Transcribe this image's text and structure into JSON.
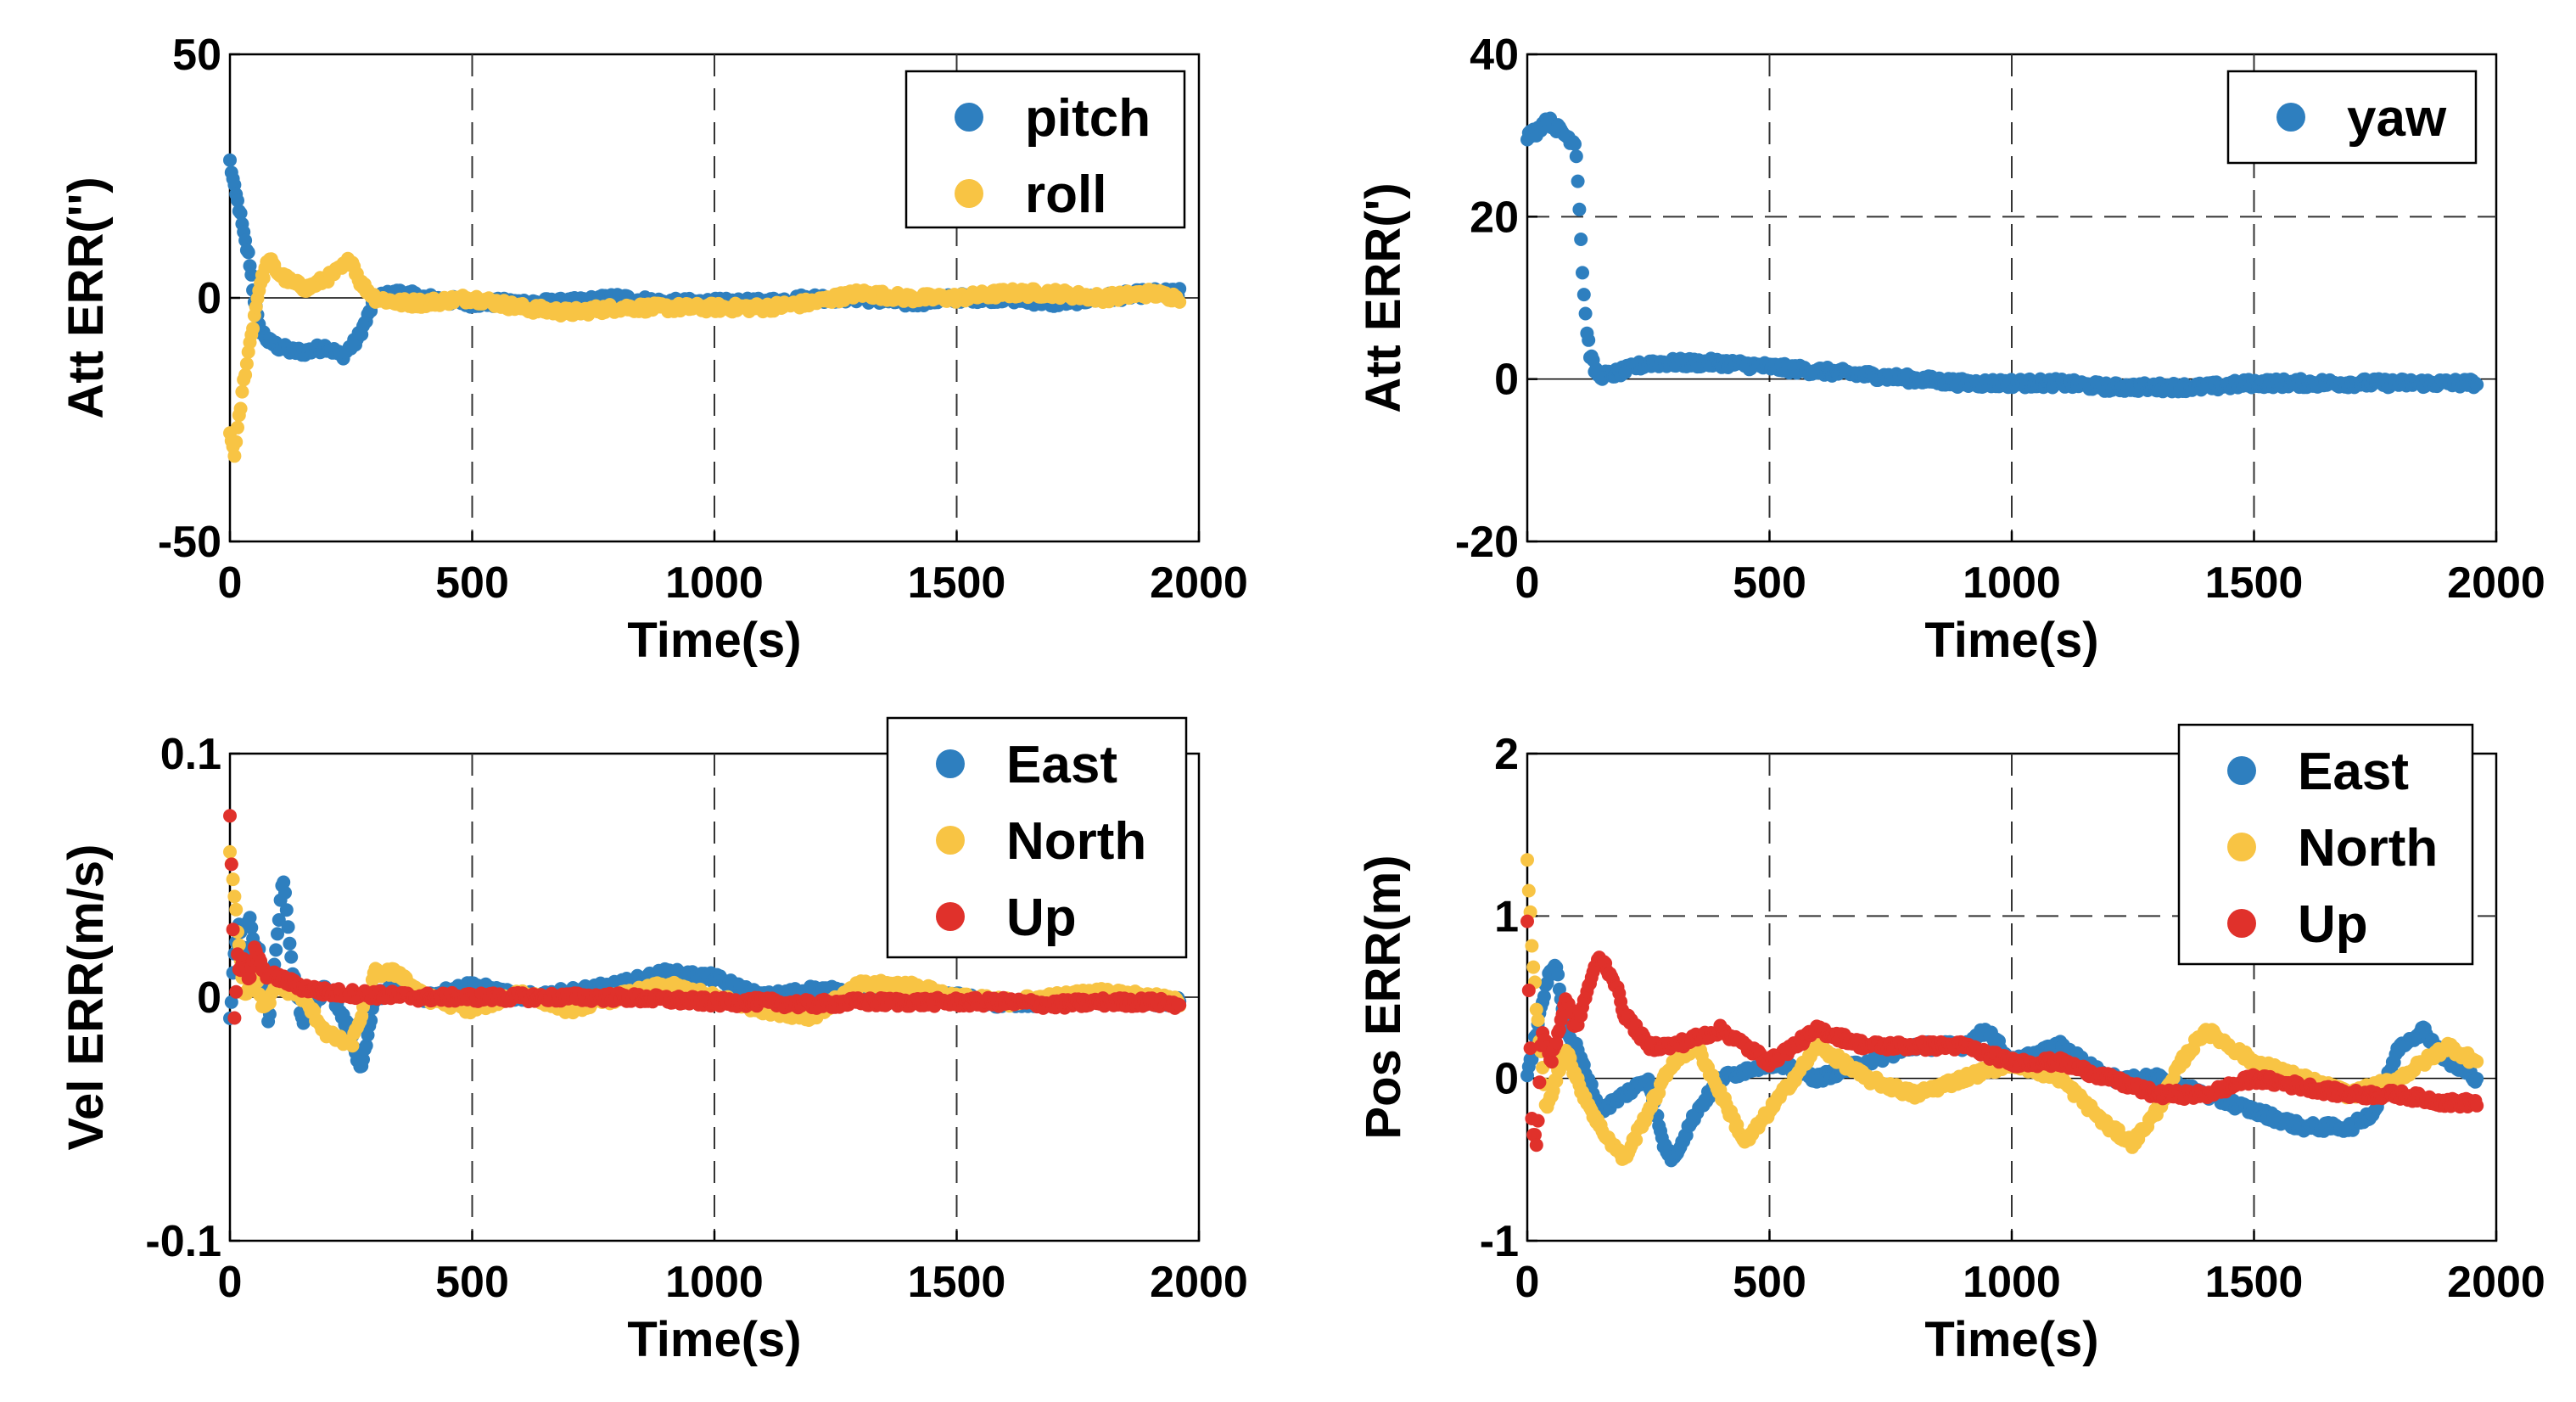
{
  "chart_data": [
    {
      "type": "scatter",
      "xlabel": "Time(s)",
      "ylabel": "Att ERR('')",
      "xlim": [
        0,
        2000
      ],
      "ylim": [
        -50,
        50
      ],
      "xticks": [
        0,
        500,
        1000,
        1500,
        2000
      ],
      "yticks": [
        -50,
        0,
        50
      ],
      "xtick_labels": [
        "0",
        "500",
        "1000",
        "1500",
        "2000"
      ],
      "ytick_labels": [
        "-50",
        "0",
        "50"
      ],
      "grid_x_dashed": [
        500,
        1000,
        1500
      ],
      "grid_y_dashed": [],
      "legend_position": "top-right",
      "series": [
        {
          "name": "pitch",
          "color": "#2e7fbf",
          "x": [
            0,
            10,
            20,
            30,
            40,
            50,
            60,
            80,
            100,
            130,
            160,
            200,
            230,
            260,
            280,
            300,
            350,
            400,
            500,
            600,
            700,
            800,
            900,
            1000,
            1100,
            1200,
            1300,
            1400,
            1500,
            1600,
            1700,
            1800,
            1900,
            1960
          ],
          "y": [
            28,
            22,
            18,
            12,
            8,
            0,
            -6,
            -9,
            -10,
            -11,
            -11,
            -10,
            -12,
            -9,
            -5,
            0,
            1,
            0,
            -1,
            -1,
            -1,
            0,
            -1,
            -1,
            -1,
            0,
            0,
            -1,
            0,
            0,
            -1,
            0,
            1,
            1
          ]
        },
        {
          "name": "roll",
          "color": "#f8c444",
          "x": [
            0,
            10,
            20,
            30,
            40,
            50,
            60,
            70,
            80,
            100,
            130,
            160,
            200,
            230,
            250,
            270,
            300,
            350,
            400,
            500,
            600,
            700,
            800,
            900,
            1000,
            1100,
            1200,
            1300,
            1400,
            1500,
            1600,
            1700,
            1800,
            1900,
            1960
          ],
          "y": [
            -28,
            -32,
            -24,
            -16,
            -10,
            -4,
            2,
            5,
            8,
            5,
            3,
            2,
            4,
            6,
            8,
            3,
            0,
            -1,
            -1,
            0,
            -2,
            -3,
            -2,
            -2,
            -2,
            -2,
            -1,
            1,
            0,
            0,
            1,
            1,
            0,
            1,
            0
          ]
        }
      ]
    },
    {
      "type": "scatter",
      "xlabel": "Time(s)",
      "ylabel": "Att ERR(')",
      "xlim": [
        0,
        2000
      ],
      "ylim": [
        -20,
        40
      ],
      "xticks": [
        0,
        500,
        1000,
        1500,
        2000
      ],
      "yticks": [
        -20,
        0,
        20,
        40
      ],
      "xtick_labels": [
        "0",
        "500",
        "1000",
        "1500",
        "2000"
      ],
      "ytick_labels": [
        "-20",
        "0",
        "20",
        "40"
      ],
      "grid_x_dashed": [
        500,
        1000,
        1500
      ],
      "grid_y_dashed": [
        20
      ],
      "legend_position": "top-right",
      "series": [
        {
          "name": "yaw",
          "color": "#2e7fbf",
          "x": [
            0,
            20,
            40,
            60,
            80,
            100,
            105,
            110,
            115,
            120,
            125,
            130,
            140,
            150,
            170,
            200,
            250,
            300,
            400,
            500,
            600,
            700,
            800,
            900,
            1000,
            1100,
            1200,
            1300,
            1400,
            1500,
            1600,
            1700,
            1800,
            1900,
            1960
          ],
          "y": [
            30,
            30.5,
            32,
            31,
            30,
            29,
            24,
            18,
            12,
            8,
            5,
            3,
            1,
            0.5,
            0.5,
            1,
            2,
            2,
            2,
            1.5,
            1,
            0.5,
            0,
            -0.5,
            -0.5,
            -0.5,
            -1,
            -1,
            -1,
            -0.5,
            -0.5,
            -0.5,
            -0.5,
            -0.5,
            -0.5
          ]
        }
      ]
    },
    {
      "type": "scatter",
      "xlabel": "Time(s)",
      "ylabel": "Vel ERR(m/s)",
      "xlim": [
        0,
        2000
      ],
      "ylim": [
        -0.1,
        0.1
      ],
      "xticks": [
        0,
        500,
        1000,
        1500,
        2000
      ],
      "yticks": [
        -0.1,
        0,
        0.1
      ],
      "xtick_labels": [
        "0",
        "500",
        "1000",
        "1500",
        "2000"
      ],
      "ytick_labels": [
        "-0.1",
        "0",
        "0.1"
      ],
      "grid_x_dashed": [
        500,
        1000,
        1500
      ],
      "grid_y_dashed": [],
      "legend_position": "top-right",
      "series": [
        {
          "name": "East",
          "color": "#2e7fbf",
          "x": [
            0,
            10,
            20,
            30,
            40,
            50,
            60,
            80,
            100,
            110,
            130,
            150,
            200,
            250,
            270,
            300,
            350,
            400,
            500,
            600,
            700,
            800,
            900,
            1000,
            1100,
            1200,
            1300,
            1400,
            1500,
            1600,
            1700,
            1800,
            1900,
            1960
          ],
          "y": [
            -0.01,
            0.02,
            0.03,
            0.01,
            0.035,
            0.02,
            0.02,
            -0.01,
            0.03,
            0.05,
            0.01,
            -0.01,
            0.005,
            -0.015,
            -0.03,
            0.0,
            0.005,
            0.0,
            0.005,
            0.0,
            0.002,
            0.005,
            0.01,
            0.008,
            0.0,
            0.003,
            0.002,
            0.0,
            0.0,
            -0.003,
            -0.002,
            0.0,
            -0.002,
            -0.002
          ]
        },
        {
          "name": "North",
          "color": "#f8c444",
          "x": [
            0,
            10,
            20,
            30,
            50,
            70,
            100,
            150,
            200,
            250,
            300,
            350,
            400,
            500,
            600,
            700,
            800,
            900,
            1000,
            1100,
            1200,
            1300,
            1400,
            1500,
            1600,
            1700,
            1800,
            1900,
            1960
          ],
          "y": [
            0.06,
            0.04,
            0.02,
            0.0,
            0.01,
            -0.005,
            0.005,
            0.0,
            -0.015,
            -0.02,
            0.01,
            0.01,
            0.0,
            -0.005,
            0.002,
            -0.005,
            0.0,
            0.005,
            0.0,
            -0.005,
            -0.008,
            0.005,
            0.005,
            0.0,
            -0.002,
            0.0,
            0.002,
            0.0,
            -0.002
          ]
        },
        {
          "name": "Up",
          "color": "#e0312b",
          "x": [
            0,
            5,
            10,
            15,
            20,
            30,
            40,
            50,
            70,
            100,
            150,
            200,
            300,
            400,
            500,
            600,
            700,
            800,
            900,
            1000,
            1100,
            1200,
            1300,
            1400,
            1500,
            1600,
            1700,
            1800,
            1900,
            1960
          ],
          "y": [
            0.075,
            0.045,
            -0.015,
            0.02,
            0.01,
            0.015,
            0.005,
            0.02,
            0.01,
            0.008,
            0.004,
            0.002,
            0.001,
            0.0,
            0.0,
            0.0,
            0.0,
            0.0,
            -0.001,
            -0.002,
            -0.002,
            -0.003,
            -0.002,
            -0.002,
            -0.002,
            -0.002,
            -0.003,
            -0.002,
            -0.002,
            -0.003
          ]
        }
      ]
    },
    {
      "type": "scatter",
      "xlabel": "Time(s)",
      "ylabel": "Pos ERR(m)",
      "xlim": [
        0,
        2000
      ],
      "ylim": [
        -1,
        2
      ],
      "xticks": [
        0,
        500,
        1000,
        1500,
        2000
      ],
      "yticks": [
        -1,
        0,
        1,
        2
      ],
      "xtick_labels": [
        "0",
        "500",
        "1000",
        "1500",
        "2000"
      ],
      "ytick_labels": [
        "-1",
        "0",
        "1",
        "2"
      ],
      "grid_x_dashed": [
        500,
        1000,
        1500
      ],
      "grid_y_dashed": [
        1
      ],
      "legend_position": "top-right",
      "series": [
        {
          "name": "East",
          "color": "#2e7fbf",
          "x": [
            0,
            20,
            40,
            60,
            80,
            100,
            150,
            200,
            250,
            280,
            300,
            350,
            400,
            500,
            600,
            700,
            800,
            900,
            950,
            1000,
            1100,
            1200,
            1300,
            1400,
            1500,
            1600,
            1700,
            1750,
            1800,
            1850,
            1900,
            1960
          ],
          "y": [
            0.0,
            0.3,
            0.6,
            0.7,
            0.3,
            0.2,
            -0.2,
            -0.1,
            0.0,
            -0.4,
            -0.5,
            -0.2,
            0.0,
            0.1,
            0.0,
            0.1,
            0.2,
            0.2,
            0.3,
            0.1,
            0.2,
            0.0,
            0.0,
            -0.1,
            -0.2,
            -0.3,
            -0.3,
            -0.2,
            0.2,
            0.3,
            0.1,
            0.0
          ]
        },
        {
          "name": "North",
          "color": "#f8c444",
          "x": [
            0,
            10,
            20,
            40,
            60,
            80,
            100,
            150,
            200,
            250,
            300,
            350,
            400,
            450,
            500,
            600,
            700,
            800,
            900,
            1000,
            1100,
            1200,
            1250,
            1300,
            1350,
            1400,
            1500,
            1600,
            1700,
            1800,
            1900,
            1960
          ],
          "y": [
            1.35,
            0.8,
            0.4,
            -0.2,
            0.0,
            0.2,
            0.0,
            -0.3,
            -0.5,
            -0.2,
            0.1,
            0.2,
            -0.1,
            -0.4,
            -0.2,
            0.2,
            0.0,
            -0.1,
            0.0,
            0.1,
            0.0,
            -0.3,
            -0.4,
            -0.2,
            0.1,
            0.3,
            0.1,
            0.0,
            -0.1,
            0.0,
            0.2,
            0.1
          ]
        },
        {
          "name": "Up",
          "color": "#e0312b",
          "x": [
            0,
            10,
            20,
            30,
            50,
            80,
            100,
            130,
            150,
            180,
            200,
            250,
            300,
            400,
            500,
            600,
            700,
            800,
            900,
            1000,
            1100,
            1200,
            1300,
            1400,
            1500,
            1600,
            1700,
            1800,
            1900,
            1960
          ],
          "y": [
            0.95,
            -0.3,
            -0.4,
            0.3,
            0.1,
            0.5,
            0.3,
            0.6,
            0.75,
            0.6,
            0.4,
            0.2,
            0.2,
            0.3,
            0.1,
            0.3,
            0.2,
            0.2,
            0.2,
            0.1,
            0.1,
            0.0,
            -0.1,
            -0.1,
            0.0,
            -0.05,
            -0.1,
            -0.1,
            -0.15,
            -0.15
          ]
        }
      ]
    }
  ]
}
